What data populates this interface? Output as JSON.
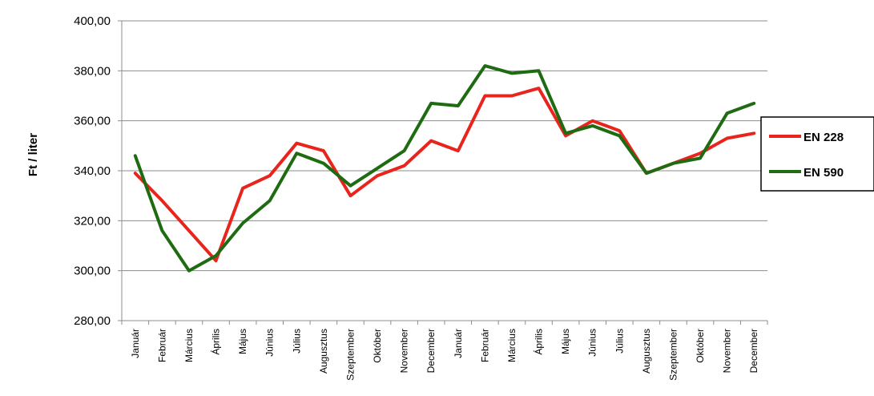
{
  "chart_data": {
    "type": "line",
    "title": "",
    "xlabel": "",
    "ylabel": "Ft / liter",
    "ylim": [
      280,
      400
    ],
    "yticks": [
      280,
      300,
      320,
      340,
      360,
      380,
      400
    ],
    "ytick_labels": [
      "280,00",
      "300,00",
      "320,00",
      "340,00",
      "360,00",
      "380,00",
      "400,00"
    ],
    "grid": "horizontal",
    "legend": "right",
    "categories": [
      "Január",
      "Február",
      "Március",
      "Április",
      "Május",
      "Június",
      "Július",
      "Augusztus",
      "Szeptember",
      "Október",
      "November",
      "December",
      "Január",
      "Február",
      "Március",
      "Április",
      "Május",
      "Június",
      "Július",
      "Augusztus",
      "Szeptember",
      "Október",
      "November",
      "December"
    ],
    "series": [
      {
        "name": "EN 228",
        "color": "#e8241d",
        "values": [
          339,
          328,
          316,
          304,
          333,
          338,
          351,
          348,
          330,
          338,
          342,
          352,
          348,
          370,
          370,
          373,
          354,
          360,
          356,
          339,
          343,
          347,
          353,
          355
        ]
      },
      {
        "name": "EN 590",
        "color": "#1e6b12",
        "values": [
          346,
          316,
          300,
          306,
          319,
          328,
          347,
          343,
          334,
          341,
          348,
          367,
          366,
          382,
          379,
          380,
          355,
          358,
          354,
          339,
          343,
          345,
          363,
          367
        ]
      }
    ]
  }
}
